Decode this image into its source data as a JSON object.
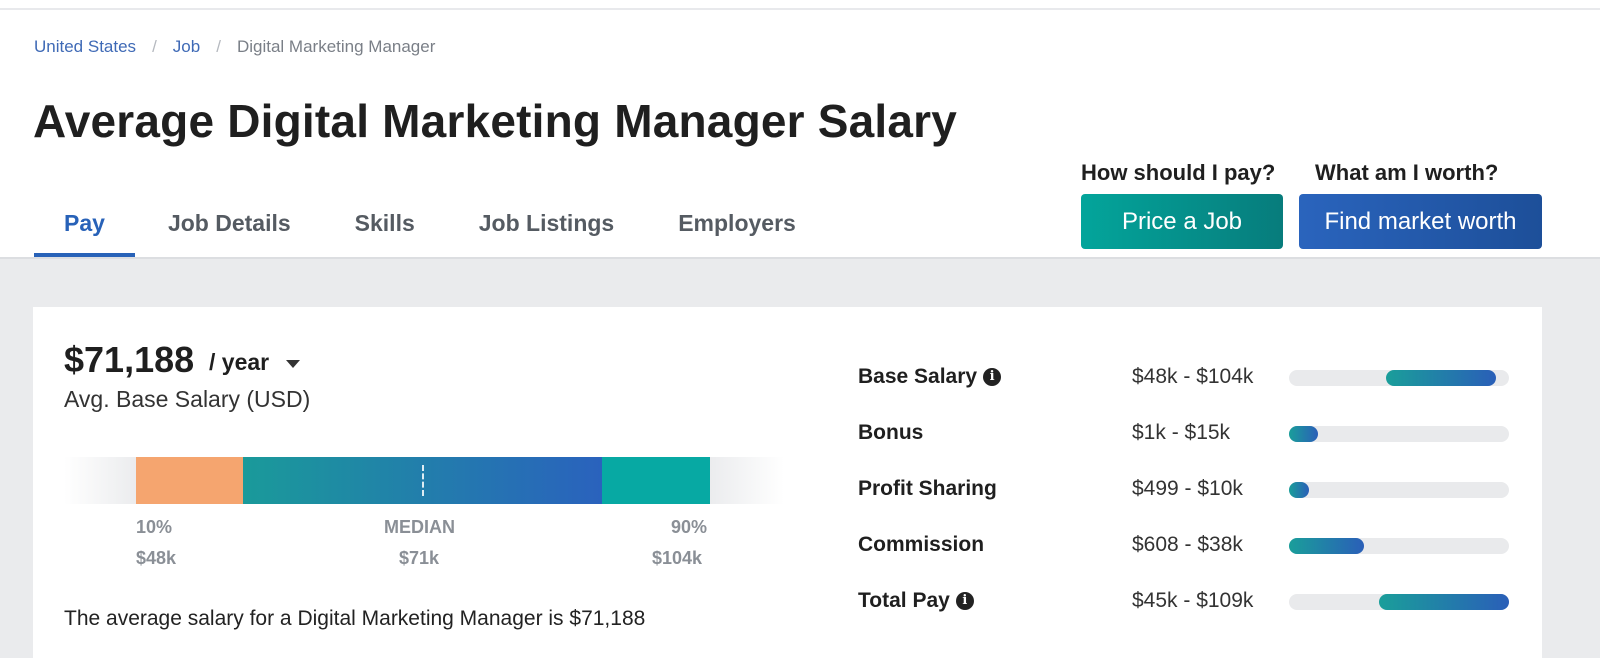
{
  "breadcrumb": {
    "items": [
      "United States",
      "Job",
      "Digital Marketing Manager"
    ],
    "separator": "/"
  },
  "page_title": "Average Digital Marketing Manager Salary",
  "tabs": [
    {
      "label": "Pay",
      "active": true
    },
    {
      "label": "Job Details",
      "active": false
    },
    {
      "label": "Skills",
      "active": false
    },
    {
      "label": "Job Listings",
      "active": false
    },
    {
      "label": "Employers",
      "active": false
    }
  ],
  "cta": {
    "price_question": "How should I pay?",
    "price_button": "Price a Job",
    "worth_question": "What am I worth?",
    "worth_button": "Find market worth"
  },
  "salary": {
    "amount": "$71,188",
    "period": "/ year",
    "caption": "Avg. Base Salary (USD)"
  },
  "distribution": {
    "p10_label": "10%",
    "p10_value": "$48k",
    "median_label": "MEDIAN",
    "median_value": "$71k",
    "p90_label": "90%",
    "p90_value": "$104k"
  },
  "summary_text": "The average salary for a Digital Marketing Manager is $71,188",
  "compensation": [
    {
      "name": "Base Salary",
      "info": true,
      "range": "$48k - $104k",
      "fill_start": 0.44,
      "fill_end": 0.94
    },
    {
      "name": "Bonus",
      "info": false,
      "range": "$1k - $15k",
      "fill_start": 0.0,
      "fill_end": 0.13
    },
    {
      "name": "Profit Sharing",
      "info": false,
      "range": "$499 - $10k",
      "fill_start": 0.0,
      "fill_end": 0.09
    },
    {
      "name": "Commission",
      "info": false,
      "range": "$608 - $38k",
      "fill_start": 0.0,
      "fill_end": 0.34
    },
    {
      "name": "Total Pay",
      "info": true,
      "range": "$45k - $109k",
      "fill_start": 0.41,
      "fill_end": 1.0
    }
  ],
  "colors": {
    "accent_blue": "#2862b8",
    "teal": "#03a59b",
    "orange": "#f5a56f"
  }
}
